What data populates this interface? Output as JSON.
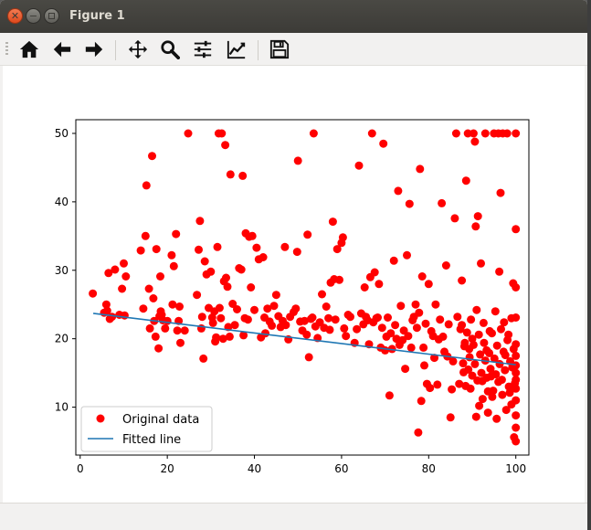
{
  "window": {
    "title": "Figure 1"
  },
  "toolbar": {
    "buttons": [
      {
        "name": "home-button",
        "icon": "home-icon"
      },
      {
        "name": "back-button",
        "icon": "arrow-left-icon"
      },
      {
        "name": "forward-button",
        "icon": "arrow-right-icon"
      },
      {
        "name": "pan-button",
        "icon": "move-icon"
      },
      {
        "name": "zoom-button",
        "icon": "magnifier-icon"
      },
      {
        "name": "subplots-button",
        "icon": "sliders-icon"
      },
      {
        "name": "edit-axes-button",
        "icon": "line-chart-icon"
      },
      {
        "name": "save-button",
        "icon": "floppy-disk-icon"
      }
    ]
  },
  "chart_data": {
    "type": "scatter",
    "xlim": [
      -1,
      103
    ],
    "ylim": [
      3,
      52
    ],
    "xticks": [
      0,
      20,
      40,
      60,
      80,
      100
    ],
    "yticks": [
      10,
      20,
      30,
      40,
      50
    ],
    "grid": false,
    "legend": {
      "placement": "lower-left",
      "entries": [
        "Original data",
        "Fitted line"
      ]
    },
    "colors": {
      "points": "#ff0000",
      "line": "#1f77b4"
    },
    "fitted_line": {
      "x": [
        3,
        100
      ],
      "y": [
        23.7,
        16.2
      ]
    },
    "series": [
      {
        "name": "Original data",
        "marker": "circle",
        "points": [
          [
            2.9,
            26.6
          ],
          [
            5.5,
            23.8
          ],
          [
            6.0,
            25.0
          ],
          [
            6.2,
            24.1
          ],
          [
            6.5,
            29.6
          ],
          [
            6.8,
            22.9
          ],
          [
            7.3,
            23.2
          ],
          [
            8.0,
            30.1
          ],
          [
            9.0,
            23.5
          ],
          [
            9.6,
            27.3
          ],
          [
            10.0,
            31.0
          ],
          [
            10.2,
            23.4
          ],
          [
            10.5,
            29.1
          ],
          [
            13.9,
            32.9
          ],
          [
            14.5,
            24.4
          ],
          [
            15.0,
            35.0
          ],
          [
            15.2,
            42.4
          ],
          [
            15.8,
            27.3
          ],
          [
            16.0,
            21.5
          ],
          [
            16.5,
            46.7
          ],
          [
            16.8,
            25.9
          ],
          [
            17.0,
            22.6
          ],
          [
            17.3,
            20.3
          ],
          [
            17.5,
            33.1
          ],
          [
            18.0,
            18.6
          ],
          [
            18.2,
            23.3
          ],
          [
            18.4,
            29.1
          ],
          [
            18.5,
            24.0
          ],
          [
            18.7,
            23.5
          ],
          [
            19.0,
            22.7
          ],
          [
            19.5,
            21.5
          ],
          [
            20.0,
            22.6
          ],
          [
            21.0,
            32.2
          ],
          [
            21.2,
            25.0
          ],
          [
            21.5,
            30.6
          ],
          [
            22.0,
            35.3
          ],
          [
            22.3,
            21.2
          ],
          [
            22.6,
            22.6
          ],
          [
            22.8,
            24.7
          ],
          [
            23.0,
            19.4
          ],
          [
            24.0,
            21.2
          ],
          [
            24.8,
            50.0
          ],
          [
            26.8,
            26.4
          ],
          [
            27.2,
            33.0
          ],
          [
            27.5,
            37.2
          ],
          [
            27.8,
            21.5
          ],
          [
            28.0,
            23.2
          ],
          [
            28.3,
            17.1
          ],
          [
            28.6,
            31.3
          ],
          [
            29.0,
            29.4
          ],
          [
            29.5,
            24.5
          ],
          [
            30.0,
            29.8
          ],
          [
            30.3,
            23.1
          ],
          [
            30.5,
            22.3
          ],
          [
            30.8,
            24.0
          ],
          [
            31.0,
            19.6
          ],
          [
            31.2,
            20.2
          ],
          [
            31.5,
            33.4
          ],
          [
            31.8,
            50.0
          ],
          [
            32.0,
            24.5
          ],
          [
            32.3,
            23.0
          ],
          [
            32.5,
            50.0
          ],
          [
            32.8,
            20.0
          ],
          [
            33.0,
            28.4
          ],
          [
            33.3,
            48.3
          ],
          [
            33.5,
            28.9
          ],
          [
            33.8,
            27.6
          ],
          [
            34.0,
            21.7
          ],
          [
            34.3,
            20.3
          ],
          [
            34.5,
            44.0
          ],
          [
            35.0,
            25.1
          ],
          [
            35.5,
            22.0
          ],
          [
            36.0,
            24.3
          ],
          [
            36.5,
            30.3
          ],
          [
            37.0,
            30.1
          ],
          [
            37.3,
            43.8
          ],
          [
            37.5,
            20.5
          ],
          [
            37.8,
            23.0
          ],
          [
            38.0,
            35.4
          ],
          [
            38.5,
            22.8
          ],
          [
            38.8,
            34.9
          ],
          [
            39.2,
            27.5
          ],
          [
            39.5,
            35.0
          ],
          [
            40.0,
            24.2
          ],
          [
            40.5,
            33.3
          ],
          [
            41.0,
            31.6
          ],
          [
            41.5,
            20.2
          ],
          [
            42.0,
            31.9
          ],
          [
            42.3,
            23.1
          ],
          [
            42.5,
            20.8
          ],
          [
            43.0,
            24.4
          ],
          [
            43.5,
            22.5
          ],
          [
            44.0,
            21.9
          ],
          [
            44.5,
            24.8
          ],
          [
            45.0,
            26.4
          ],
          [
            45.5,
            23.3
          ],
          [
            46.0,
            21.7
          ],
          [
            46.5,
            22.6
          ],
          [
            47.0,
            33.4
          ],
          [
            47.2,
            22.0
          ],
          [
            47.8,
            19.9
          ],
          [
            48.2,
            23.2
          ],
          [
            49.0,
            23.9
          ],
          [
            49.5,
            24.4
          ],
          [
            49.8,
            32.7
          ],
          [
            50.0,
            46.0
          ],
          [
            50.5,
            22.5
          ],
          [
            51.0,
            21.2
          ],
          [
            51.5,
            22.6
          ],
          [
            52.0,
            20.6
          ],
          [
            52.2,
            35.2
          ],
          [
            52.5,
            17.3
          ],
          [
            53.0,
            22.9
          ],
          [
            53.3,
            23.1
          ],
          [
            53.6,
            50.0
          ],
          [
            54.0,
            21.8
          ],
          [
            54.5,
            20.1
          ],
          [
            55.0,
            22.4
          ],
          [
            55.5,
            26.5
          ],
          [
            56.0,
            21.6
          ],
          [
            56.5,
            24.7
          ],
          [
            57.0,
            23.0
          ],
          [
            57.3,
            21.3
          ],
          [
            57.5,
            28.2
          ],
          [
            58.0,
            37.1
          ],
          [
            58.3,
            28.7
          ],
          [
            58.6,
            22.8
          ],
          [
            59.0,
            33.1
          ],
          [
            59.5,
            28.6
          ],
          [
            60.0,
            34.0
          ],
          [
            60.3,
            34.8
          ],
          [
            60.6,
            21.5
          ],
          [
            61.0,
            20.4
          ],
          [
            61.5,
            23.5
          ],
          [
            62.0,
            23.2
          ],
          [
            63.0,
            19.4
          ],
          [
            63.5,
            21.4
          ],
          [
            64.0,
            45.3
          ],
          [
            64.5,
            23.7
          ],
          [
            65.0,
            22.1
          ],
          [
            65.3,
            27.5
          ],
          [
            65.6,
            23.2
          ],
          [
            66.0,
            22.7
          ],
          [
            66.3,
            19.2
          ],
          [
            66.6,
            29.0
          ],
          [
            67.0,
            50.0
          ],
          [
            67.3,
            22.4
          ],
          [
            67.6,
            29.7
          ],
          [
            68.0,
            23.0
          ],
          [
            68.3,
            23.1
          ],
          [
            68.6,
            28.0
          ],
          [
            69.0,
            18.7
          ],
          [
            69.3,
            21.6
          ],
          [
            69.6,
            48.5
          ],
          [
            70.0,
            18.3
          ],
          [
            70.3,
            20.3
          ],
          [
            70.6,
            23.1
          ],
          [
            71.0,
            11.7
          ],
          [
            71.3,
            20.8
          ],
          [
            71.6,
            18.5
          ],
          [
            72.0,
            31.4
          ],
          [
            72.3,
            22.0
          ],
          [
            72.6,
            20.0
          ],
          [
            73.0,
            41.6
          ],
          [
            73.3,
            19.1
          ],
          [
            73.6,
            24.8
          ],
          [
            74.0,
            19.8
          ],
          [
            74.3,
            21.2
          ],
          [
            74.6,
            15.6
          ],
          [
            75.0,
            32.2
          ],
          [
            75.3,
            20.4
          ],
          [
            75.6,
            39.7
          ],
          [
            76.0,
            18.7
          ],
          [
            76.3,
            22.7
          ],
          [
            76.6,
            23.2
          ],
          [
            77.0,
            25.0
          ],
          [
            77.3,
            21.6
          ],
          [
            77.6,
            6.3
          ],
          [
            77.8,
            23.8
          ],
          [
            78.0,
            44.8
          ],
          [
            78.3,
            10.9
          ],
          [
            78.5,
            29.1
          ],
          [
            78.8,
            18.7
          ],
          [
            79.0,
            16.1
          ],
          [
            79.3,
            22.2
          ],
          [
            79.6,
            13.4
          ],
          [
            80.0,
            28.0
          ],
          [
            80.3,
            12.8
          ],
          [
            80.6,
            21.1
          ],
          [
            81.0,
            20.4
          ],
          [
            81.3,
            17.2
          ],
          [
            81.6,
            25.0
          ],
          [
            82.0,
            13.3
          ],
          [
            82.3,
            19.9
          ],
          [
            82.6,
            22.8
          ],
          [
            83.0,
            39.8
          ],
          [
            83.3,
            20.3
          ],
          [
            83.6,
            18.1
          ],
          [
            84.0,
            30.7
          ],
          [
            84.3,
            17.4
          ],
          [
            84.6,
            22.1
          ],
          [
            85.0,
            8.5
          ],
          [
            85.3,
            12.6
          ],
          [
            85.6,
            16.7
          ],
          [
            86.0,
            37.6
          ],
          [
            86.3,
            50.0
          ],
          [
            86.6,
            23.2
          ],
          [
            87.0,
            13.4
          ],
          [
            87.3,
            21.4
          ],
          [
            87.6,
            28.5
          ],
          [
            88.0,
            15.1
          ],
          [
            88.3,
            19.4
          ],
          [
            88.6,
            43.1
          ],
          [
            89.0,
            50.0
          ],
          [
            89.3,
            18.5
          ],
          [
            89.6,
            12.7
          ],
          [
            90.0,
            20.0
          ],
          [
            90.3,
            50.0
          ],
          [
            90.6,
            48.8
          ],
          [
            90.8,
            36.4
          ],
          [
            91.0,
            24.2
          ],
          [
            91.3,
            37.9
          ],
          [
            91.6,
            10.2
          ],
          [
            92.0,
            31.0
          ],
          [
            92.3,
            13.8
          ],
          [
            92.6,
            22.3
          ],
          [
            93.0,
            50.0
          ],
          [
            93.3,
            18.3
          ],
          [
            93.6,
            12.3
          ],
          [
            94.0,
            21.1
          ],
          [
            94.3,
            14.5
          ],
          [
            94.6,
            11.5
          ],
          [
            95.0,
            50.0
          ],
          [
            95.3,
            24.0
          ],
          [
            95.6,
            8.3
          ],
          [
            96.0,
            50.0
          ],
          [
            96.2,
            29.8
          ],
          [
            96.5,
            41.3
          ],
          [
            96.8,
            14.0
          ],
          [
            97.0,
            50.0
          ],
          [
            97.3,
            22.4
          ],
          [
            97.6,
            17.6
          ],
          [
            98.0,
            50.0
          ],
          [
            98.3,
            20.6
          ],
          [
            98.6,
            12.1
          ],
          [
            99.0,
            23.0
          ],
          [
            99.2,
            15.8
          ],
          [
            99.4,
            28.1
          ],
          [
            99.6,
            5.6
          ],
          [
            99.8,
            13.5
          ],
          [
            100.0,
            50.0
          ],
          [
            100.0,
            36.0
          ],
          [
            100.0,
            27.5
          ],
          [
            100.0,
            23.1
          ],
          [
            100.0,
            19.2
          ],
          [
            100.0,
            17.5
          ],
          [
            100.0,
            16.1
          ],
          [
            100.0,
            15.0
          ],
          [
            100.0,
            14.0
          ],
          [
            100.0,
            12.7
          ],
          [
            100.0,
            11.0
          ],
          [
            100.0,
            8.8
          ],
          [
            100.0,
            7.0
          ],
          [
            100.0,
            5.0
          ],
          [
            99.5,
            18.5
          ],
          [
            99.0,
            10.4
          ],
          [
            98.7,
            16.7
          ],
          [
            98.4,
            13.0
          ],
          [
            98.1,
            19.8
          ],
          [
            97.8,
            9.6
          ],
          [
            97.5,
            15.4
          ],
          [
            97.2,
            18.1
          ],
          [
            96.9,
            11.8
          ],
          [
            96.6,
            21.4
          ],
          [
            96.3,
            16.3
          ],
          [
            96.0,
            13.7
          ],
          [
            95.7,
            19.0
          ],
          [
            95.4,
            14.8
          ],
          [
            95.1,
            17.1
          ],
          [
            94.8,
            12.4
          ],
          [
            94.5,
            20.8
          ],
          [
            94.2,
            15.6
          ],
          [
            93.9,
            17.9
          ],
          [
            93.6,
            9.2
          ],
          [
            93.3,
            14.3
          ],
          [
            93.0,
            16.8
          ],
          [
            92.7,
            19.4
          ],
          [
            92.4,
            11.2
          ],
          [
            92.1,
            15.0
          ],
          [
            91.8,
            17.7
          ],
          [
            91.5,
            20.6
          ],
          [
            91.2,
            13.9
          ],
          [
            90.9,
            8.6
          ],
          [
            90.6,
            16.3
          ],
          [
            90.3,
            19.1
          ],
          [
            90.0,
            14.6
          ],
          [
            89.7,
            22.8
          ],
          [
            89.4,
            17.3
          ],
          [
            89.1,
            15.5
          ],
          [
            88.8,
            20.9
          ],
          [
            88.5,
            13.1
          ],
          [
            88.2,
            18.9
          ],
          [
            87.9,
            16.4
          ],
          [
            87.6,
            22.0
          ]
        ]
      },
      {
        "name": "Fitted line",
        "marker": "line"
      }
    ]
  }
}
